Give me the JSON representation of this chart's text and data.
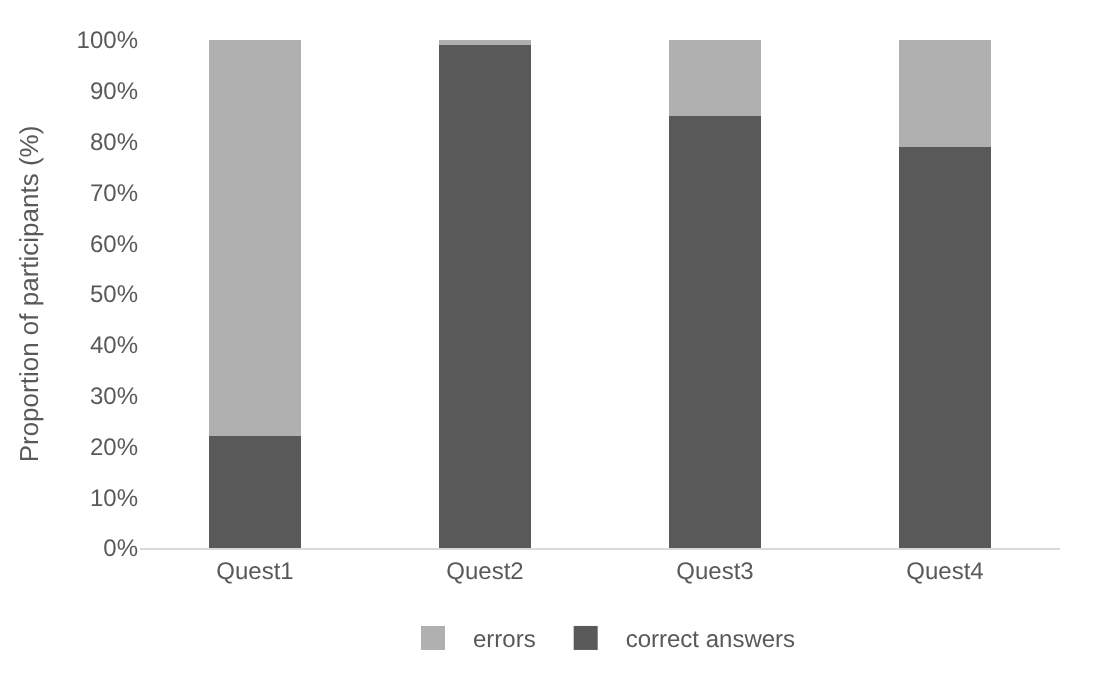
{
  "chart_data": {
    "type": "bar",
    "stacked": true,
    "ylabel": "Proportion of participants (%)",
    "categories": [
      "Quest1",
      "Quest2",
      "Quest3",
      "Quest4"
    ],
    "series": [
      {
        "name": "correct answers",
        "color": "#595959",
        "values": [
          22,
          99,
          85,
          79
        ]
      },
      {
        "name": "errors",
        "color": "#b0b0b0",
        "values": [
          78,
          1,
          15,
          21
        ]
      }
    ],
    "ylim": [
      0,
      100
    ],
    "yticks": [
      {
        "value": 0,
        "label": "0%"
      },
      {
        "value": 10,
        "label": "10%"
      },
      {
        "value": 20,
        "label": "20%"
      },
      {
        "value": 30,
        "label": "30%"
      },
      {
        "value": 40,
        "label": "40%"
      },
      {
        "value": 50,
        "label": "50%"
      },
      {
        "value": 60,
        "label": "60%"
      },
      {
        "value": 70,
        "label": "70%"
      },
      {
        "value": 80,
        "label": "80%"
      },
      {
        "value": 90,
        "label": "90%"
      },
      {
        "value": 100,
        "label": "100%"
      }
    ],
    "grid": false,
    "legend": "bottom"
  }
}
